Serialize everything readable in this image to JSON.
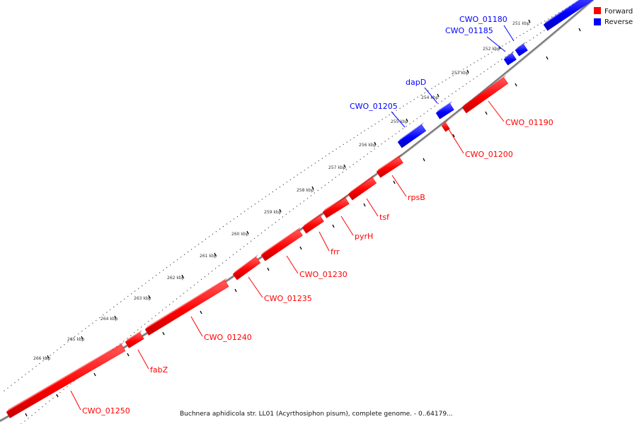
{
  "legend": {
    "forward_label": "Forward",
    "reverse_label": "Reverse",
    "forward_color": "#ff0000",
    "reverse_color": "#0000ff"
  },
  "caption": "Buchnera aphidicola str. LL01 (Acyrthosiphon pisum), complete genome. - 0..64179...",
  "kbp_ticks": [
    "251 kbp",
    "252 kbp",
    "253 kbp",
    "254 kbp",
    "255 kbp",
    "256 kbp",
    "257 kbp",
    "258 kbp",
    "259 kbp",
    "260 kbp",
    "261 kbp",
    "262 kbp",
    "263 kbp",
    "264 kbp",
    "265 kbp",
    "266 kbp"
  ],
  "forward_genes": [
    "CWO_01190",
    "CWO_01200",
    "rpsB",
    "tsf",
    "pyrH",
    "frr",
    "CWO_01230",
    "CWO_01235",
    "CWO_01240",
    "fabZ",
    "CWO_01250"
  ],
  "reverse_genes": [
    "CWO_01180",
    "CWO_01185",
    "dapD",
    "CWO_01205"
  ]
}
